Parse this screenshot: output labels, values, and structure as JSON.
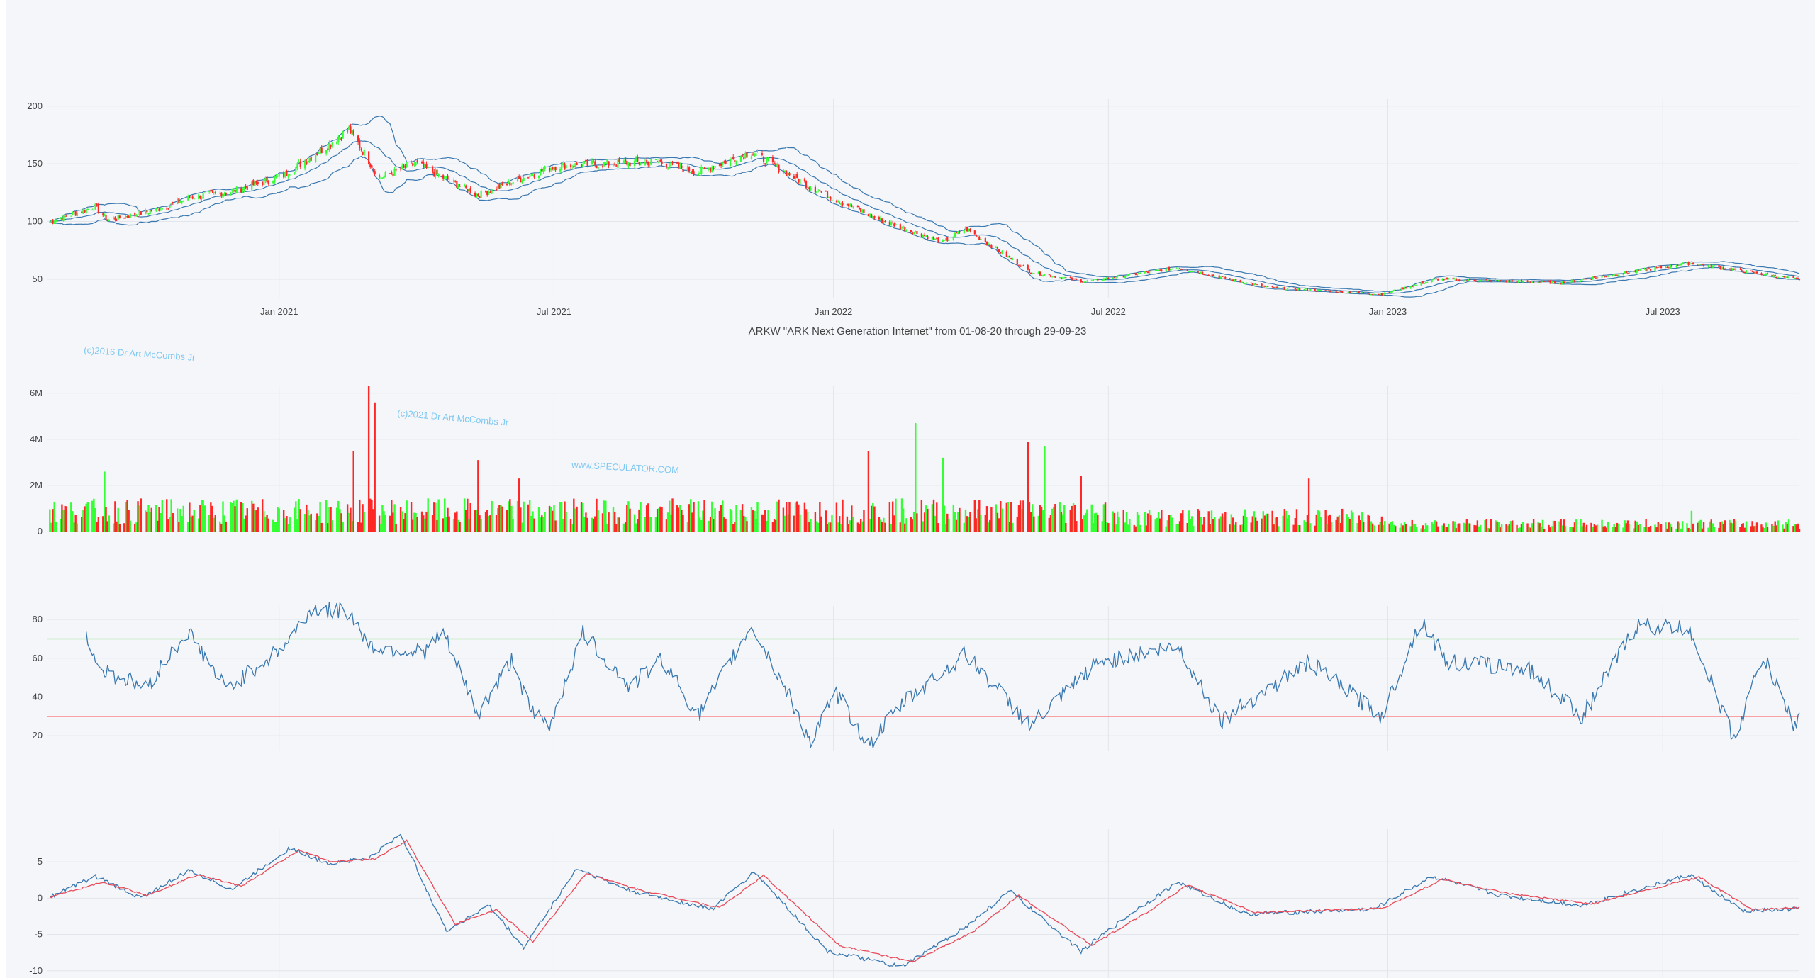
{
  "watermarks": [
    "(c)2016 Dr Art McCombs Jr",
    "(c)2021 Dr Art McCombs Jr",
    "www.SPECULATOR.COM"
  ],
  "colors": {
    "up": "#33ff33",
    "down": "#ff2626",
    "line": "#3a78b0",
    "signal": "#e84b5a",
    "overbought": "#66e066",
    "oversold": "#ff4d4d",
    "grid": "#e2e6ec"
  },
  "chart_data": [
    {
      "type": "candlestick",
      "title": "ARKW \"ARK Next Generation Internet\" from 01-08-20 through 29-09-23",
      "x_range": [
        "2020-08-01",
        "2023-09-29"
      ],
      "x_tick_labels": [
        "Jan 2021",
        "Jul 2021",
        "Jan 2022",
        "Jul 2022",
        "Jan 2023",
        "Jul 2023"
      ],
      "y_ticks": [
        50,
        100,
        150,
        200
      ],
      "overlays": [
        "Bollinger upper",
        "Bollinger middle",
        "Bollinger lower"
      ],
      "close": [
        {
          "date": "2020-08-03",
          "value": 100
        },
        {
          "date": "2020-09-02",
          "value": 113
        },
        {
          "date": "2020-09-10",
          "value": 101
        },
        {
          "date": "2020-10-12",
          "value": 110
        },
        {
          "date": "2020-11-04",
          "value": 121
        },
        {
          "date": "2020-12-01",
          "value": 126
        },
        {
          "date": "2021-01-04",
          "value": 140
        },
        {
          "date": "2021-02-01",
          "value": 165
        },
        {
          "date": "2021-02-16",
          "value": 180
        },
        {
          "date": "2021-03-08",
          "value": 138
        },
        {
          "date": "2021-04-01",
          "value": 150
        },
        {
          "date": "2021-05-12",
          "value": 123
        },
        {
          "date": "2021-07-01",
          "value": 148
        },
        {
          "date": "2021-09-07",
          "value": 152
        },
        {
          "date": "2021-10-04",
          "value": 143
        },
        {
          "date": "2021-11-08",
          "value": 160
        },
        {
          "date": "2021-12-20",
          "value": 128
        },
        {
          "date": "2022-01-27",
          "value": 104
        },
        {
          "date": "2022-03-14",
          "value": 82
        },
        {
          "date": "2022-03-29",
          "value": 94
        },
        {
          "date": "2022-05-11",
          "value": 56
        },
        {
          "date": "2022-06-16",
          "value": 48
        },
        {
          "date": "2022-08-16",
          "value": 60
        },
        {
          "date": "2022-10-13",
          "value": 43
        },
        {
          "date": "2022-12-28",
          "value": 37
        },
        {
          "date": "2023-02-02",
          "value": 50
        },
        {
          "date": "2023-04-25",
          "value": 47
        },
        {
          "date": "2023-07-19",
          "value": 64
        },
        {
          "date": "2023-09-27",
          "value": 50
        }
      ]
    },
    {
      "type": "bar",
      "name": "Volume",
      "y_ticks": [
        0,
        2000000,
        4000000,
        6000000
      ],
      "y_tick_labels": [
        "0",
        "2M",
        "4M",
        "6M"
      ],
      "bars": [
        {
          "date": "2021-03-01",
          "value": 6300000
        },
        {
          "date": "2021-03-05",
          "value": 5600000
        },
        {
          "date": "2021-02-19",
          "value": 3500000
        },
        {
          "date": "2020-09-08",
          "value": 2600000
        },
        {
          "date": "2021-05-12",
          "value": 3100000
        },
        {
          "date": "2021-06-08",
          "value": 2300000
        },
        {
          "date": "2022-01-24",
          "value": 3500000
        },
        {
          "date": "2022-02-24",
          "value": 4700000
        },
        {
          "date": "2022-03-14",
          "value": 3200000
        },
        {
          "date": "2022-05-09",
          "value": 3900000
        },
        {
          "date": "2022-05-20",
          "value": 3700000
        },
        {
          "date": "2022-06-13",
          "value": 2400000
        },
        {
          "date": "2022-11-10",
          "value": 2300000
        },
        {
          "date": "2023-07-20",
          "value": 900000
        },
        {
          "date": "2023-09-27",
          "value": 300000
        }
      ]
    },
    {
      "type": "line",
      "name": "RSI",
      "y_ticks": [
        20,
        40,
        60,
        80
      ],
      "reference_lines": [
        70,
        30
      ],
      "points": [
        {
          "date": "2020-08-27",
          "value": 72
        },
        {
          "date": "2020-09-04",
          "value": 55
        },
        {
          "date": "2020-10-05",
          "value": 45
        },
        {
          "date": "2020-11-02",
          "value": 74
        },
        {
          "date": "2020-11-27",
          "value": 44
        },
        {
          "date": "2021-01-04",
          "value": 66
        },
        {
          "date": "2021-01-22",
          "value": 85
        },
        {
          "date": "2021-02-16",
          "value": 84
        },
        {
          "date": "2021-03-02",
          "value": 66
        },
        {
          "date": "2021-04-06",
          "value": 63
        },
        {
          "date": "2021-04-19",
          "value": 73
        },
        {
          "date": "2021-05-12",
          "value": 31
        },
        {
          "date": "2021-06-04",
          "value": 60
        },
        {
          "date": "2021-06-15",
          "value": 33
        },
        {
          "date": "2021-06-28",
          "value": 25
        },
        {
          "date": "2021-07-20",
          "value": 73
        },
        {
          "date": "2021-08-20",
          "value": 45
        },
        {
          "date": "2021-09-10",
          "value": 60
        },
        {
          "date": "2021-10-04",
          "value": 30
        },
        {
          "date": "2021-11-08",
          "value": 77
        },
        {
          "date": "2021-12-03",
          "value": 40
        },
        {
          "date": "2021-12-17",
          "value": 17
        },
        {
          "date": "2022-01-03",
          "value": 42
        },
        {
          "date": "2022-01-24",
          "value": 15
        },
        {
          "date": "2022-02-17",
          "value": 38
        },
        {
          "date": "2022-03-29",
          "value": 62
        },
        {
          "date": "2022-05-11",
          "value": 25
        },
        {
          "date": "2022-06-24",
          "value": 58
        },
        {
          "date": "2022-08-16",
          "value": 66
        },
        {
          "date": "2022-09-13",
          "value": 28
        },
        {
          "date": "2022-11-10",
          "value": 58
        },
        {
          "date": "2022-12-28",
          "value": 30
        },
        {
          "date": "2023-01-23",
          "value": 80
        },
        {
          "date": "2023-02-09",
          "value": 58
        },
        {
          "date": "2023-04-03",
          "value": 55
        },
        {
          "date": "2023-05-09",
          "value": 30
        },
        {
          "date": "2023-06-14",
          "value": 77
        },
        {
          "date": "2023-07-19",
          "value": 75
        },
        {
          "date": "2023-08-17",
          "value": 18
        },
        {
          "date": "2023-09-05",
          "value": 61
        },
        {
          "date": "2023-09-26",
          "value": 25
        },
        {
          "date": "2023-09-29",
          "value": 32
        }
      ]
    },
    {
      "type": "line",
      "name": "MACD",
      "y_ticks": [
        -10,
        -5,
        0,
        5
      ],
      "series": [
        {
          "points": [
            {
              "date": "2020-08-01",
              "value": 0
            },
            {
              "date": "2020-09-02",
              "value": 3
            },
            {
              "date": "2020-10-02",
              "value": 0
            },
            {
              "date": "2020-11-03",
              "value": 3.8
            },
            {
              "date": "2020-12-01",
              "value": 1.2
            },
            {
              "date": "2021-01-08",
              "value": 6.9
            },
            {
              "date": "2021-02-01",
              "value": 4.8
            },
            {
              "date": "2021-03-01",
              "value": 5.5
            },
            {
              "date": "2021-03-22",
              "value": 8.8
            },
            {
              "date": "2021-04-21",
              "value": -4.5
            },
            {
              "date": "2021-05-19",
              "value": -1.0
            },
            {
              "date": "2021-06-11",
              "value": -6.8
            },
            {
              "date": "2021-07-16",
              "value": 4.1
            },
            {
              "date": "2021-08-20",
              "value": 1.0
            },
            {
              "date": "2021-10-13",
              "value": -1.5
            },
            {
              "date": "2021-11-10",
              "value": 3.6
            },
            {
              "date": "2021-12-28",
              "value": -7.3
            },
            {
              "date": "2022-02-15",
              "value": -9.5
            },
            {
              "date": "2022-03-29",
              "value": -4.0
            },
            {
              "date": "2022-04-27",
              "value": 1.0
            },
            {
              "date": "2022-06-13",
              "value": -7.3
            },
            {
              "date": "2022-07-20",
              "value": -1.5
            },
            {
              "date": "2022-08-16",
              "value": 2.2
            },
            {
              "date": "2022-09-30",
              "value": -2.2
            },
            {
              "date": "2022-12-23",
              "value": -1.5
            },
            {
              "date": "2023-01-30",
              "value": 3.0
            },
            {
              "date": "2023-03-15",
              "value": 0.4
            },
            {
              "date": "2023-05-09",
              "value": -1.0
            },
            {
              "date": "2023-07-19",
              "value": 3.2
            },
            {
              "date": "2023-08-23",
              "value": -1.8
            },
            {
              "date": "2023-09-29",
              "value": -1.5
            }
          ]
        },
        {
          "points": [
            {
              "date": "2020-08-01",
              "value": 0
            },
            {
              "date": "2020-09-07",
              "value": 2.2
            },
            {
              "date": "2020-10-06",
              "value": 0.4
            },
            {
              "date": "2020-11-09",
              "value": 3.3
            },
            {
              "date": "2020-12-07",
              "value": 1.6
            },
            {
              "date": "2021-01-14",
              "value": 6.6
            },
            {
              "date": "2021-02-05",
              "value": 5.0
            },
            {
              "date": "2021-03-05",
              "value": 5.4
            },
            {
              "date": "2021-03-26",
              "value": 7.9
            },
            {
              "date": "2021-04-27",
              "value": -3.6
            },
            {
              "date": "2021-05-24",
              "value": -1.6
            },
            {
              "date": "2021-06-17",
              "value": -6.0
            },
            {
              "date": "2021-07-22",
              "value": 3.4
            },
            {
              "date": "2021-08-25",
              "value": 1.2
            },
            {
              "date": "2021-10-18",
              "value": -1.3
            },
            {
              "date": "2021-11-16",
              "value": 3.1
            },
            {
              "date": "2022-01-05",
              "value": -6.5
            },
            {
              "date": "2022-02-22",
              "value": -8.8
            },
            {
              "date": "2022-04-04",
              "value": -4.5
            },
            {
              "date": "2022-05-03",
              "value": 0.4
            },
            {
              "date": "2022-06-20",
              "value": -6.5
            },
            {
              "date": "2022-07-26",
              "value": -2.0
            },
            {
              "date": "2022-08-22",
              "value": 1.8
            },
            {
              "date": "2022-10-06",
              "value": -2.0
            },
            {
              "date": "2022-12-29",
              "value": -1.4
            },
            {
              "date": "2023-02-06",
              "value": 2.6
            },
            {
              "date": "2023-03-21",
              "value": 0.6
            },
            {
              "date": "2023-05-15",
              "value": -0.8
            },
            {
              "date": "2023-07-25",
              "value": 2.9
            },
            {
              "date": "2023-08-29",
              "value": -1.6
            },
            {
              "date": "2023-09-29",
              "value": -1.3
            }
          ]
        }
      ]
    }
  ]
}
